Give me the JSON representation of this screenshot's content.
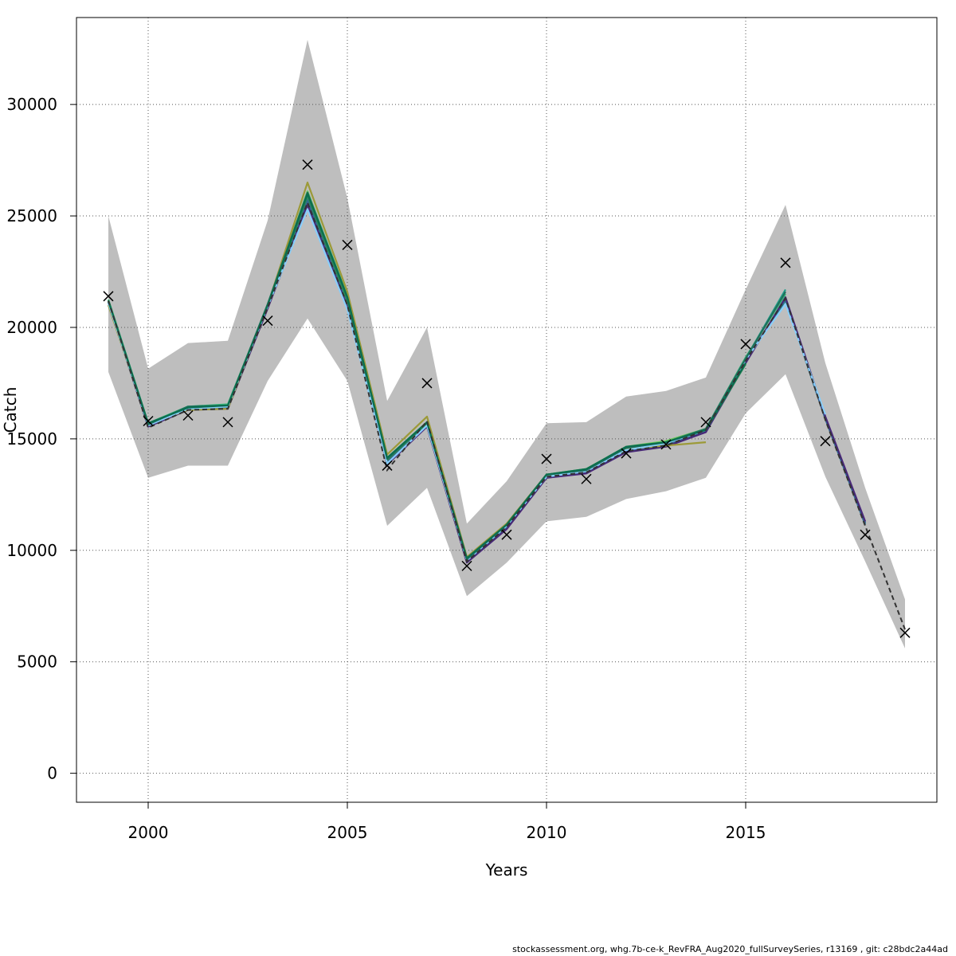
{
  "chart_data": {
    "type": "line",
    "title": "",
    "xlabel": "Years",
    "ylabel": "Catch",
    "xlim": [
      1998.2,
      2019.8
    ],
    "ylim": [
      -1300,
      33900
    ],
    "x_ticks": [
      2000,
      2005,
      2010,
      2015
    ],
    "y_ticks": [
      0,
      5000,
      10000,
      15000,
      20000,
      25000,
      30000
    ],
    "grid": true,
    "legend": "none",
    "colors": {
      "band": "#bebebe",
      "observed": "#000000",
      "fit": "#333333",
      "series": [
        "#1f9e89",
        "#35b779",
        "#26828e",
        "#3e4a89",
        "#31688e",
        "#482878",
        "#6ece58",
        "#9c9a38",
        "#2e8b57",
        "#87cefa",
        "#1e6f5c",
        "#0b6e4f"
      ]
    },
    "observed": {
      "x": [
        1999,
        2000,
        2001,
        2002,
        2003,
        2004,
        2005,
        2006,
        2007,
        2008,
        2009,
        2010,
        2011,
        2012,
        2013,
        2014,
        2015,
        2016,
        2017,
        2018,
        2019
      ],
      "y": [
        21400,
        15800,
        16050,
        15750,
        20300,
        27300,
        23700,
        13800,
        17500,
        9300,
        10700,
        14100,
        13200,
        14350,
        14750,
        15750,
        19250,
        22900,
        14900,
        10700,
        6300
      ]
    },
    "band": {
      "x": [
        1999,
        2000,
        2001,
        2002,
        2003,
        2004,
        2005,
        2006,
        2007,
        2008,
        2009,
        2010,
        2011,
        2012,
        2013,
        2014,
        2015,
        2016,
        2017,
        2018,
        2019
      ],
      "lower": [
        18000,
        13250,
        13800,
        13800,
        17600,
        20400,
        17600,
        11100,
        12800,
        7950,
        9450,
        11300,
        11500,
        12300,
        12650,
        13250,
        16150,
        17900,
        13300,
        9500,
        5600
      ],
      "upper": [
        25000,
        18150,
        19300,
        19400,
        24800,
        32900,
        25800,
        16700,
        20000,
        11200,
        13100,
        15700,
        15750,
        16900,
        17150,
        17750,
        21700,
        25500,
        18400,
        12800,
        7800
      ]
    },
    "fit": {
      "x": [
        1999,
        2000,
        2001,
        2002,
        2003,
        2004,
        2005,
        2006,
        2007,
        2008,
        2009,
        2010,
        2011,
        2012,
        2013,
        2014,
        2015,
        2016,
        2017,
        2018,
        2019
      ],
      "y": [
        21200,
        15500,
        16300,
        16350,
        20900,
        25600,
        21000,
        13600,
        15800,
        9500,
        11050,
        13300,
        13500,
        14450,
        14700,
        15400,
        18500,
        21300,
        15850,
        11100,
        6450
      ]
    },
    "series": [
      {
        "x": [
          1999,
          2000,
          2001,
          2002,
          2003,
          2004,
          2005,
          2006,
          2007,
          2008,
          2009,
          2010,
          2011,
          2012,
          2013,
          2014,
          2015,
          2016
        ],
        "y": [
          21200,
          15650,
          16400,
          16500,
          21000,
          26000,
          21300,
          14100,
          15700,
          9600,
          11100,
          13350,
          13600,
          14550,
          14850,
          15400,
          18600,
          21700
        ]
      },
      {
        "x": [
          1999,
          2000,
          2001,
          2002,
          2003,
          2004,
          2005,
          2006,
          2007,
          2008,
          2009,
          2010,
          2011,
          2012,
          2013,
          2014,
          2015,
          2016
        ],
        "y": [
          21250,
          15700,
          16450,
          16550,
          21000,
          26100,
          21400,
          14150,
          15750,
          9650,
          11150,
          13400,
          13650,
          14600,
          14900,
          15450,
          18650,
          21500
        ]
      },
      {
        "x": [
          1999,
          2000,
          2001,
          2002,
          2003,
          2004,
          2005,
          2006,
          2007,
          2008,
          2009,
          2010,
          2011,
          2012,
          2013,
          2014,
          2015,
          2016,
          2017,
          2018
        ],
        "y": [
          21150,
          15600,
          16350,
          16450,
          20950,
          25800,
          21100,
          14000,
          15650,
          9550,
          11050,
          13300,
          13550,
          14500,
          14800,
          15350,
          18550,
          21200,
          15900,
          11200
        ]
      },
      {
        "x": [
          1999,
          2000,
          2001,
          2002,
          2003,
          2004,
          2005,
          2006,
          2007,
          2008,
          2009,
          2010,
          2011,
          2012,
          2013,
          2014,
          2015,
          2016,
          2017,
          2018
        ],
        "y": [
          21100,
          15550,
          16300,
          16400,
          20900,
          25500,
          20950,
          13950,
          15600,
          9500,
          11000,
          13250,
          13500,
          14450,
          14700,
          15300,
          18450,
          21300,
          15950,
          11250
        ]
      },
      {
        "x": [
          1999,
          2000,
          2001,
          2002,
          2003,
          2004,
          2005,
          2006,
          2007,
          2008,
          2009,
          2010,
          2011,
          2012,
          2013,
          2014,
          2015,
          2016,
          2017,
          2018
        ],
        "y": [
          21150,
          15600,
          16350,
          16400,
          20900,
          25700,
          21050,
          13900,
          15650,
          9550,
          11050,
          13300,
          13550,
          14500,
          14750,
          15350,
          18500,
          21250,
          15900,
          11150
        ]
      },
      {
        "x": [
          1999,
          2000,
          2001,
          2002,
          2003,
          2004,
          2005,
          2006,
          2007,
          2008,
          2009,
          2010,
          2011,
          2012,
          2013,
          2014,
          2015,
          2016,
          2017,
          2018
        ],
        "y": [
          21100,
          15550,
          16300,
          16350,
          20850,
          25500,
          20900,
          13850,
          15550,
          9450,
          10950,
          13250,
          13450,
          14400,
          14650,
          15300,
          18400,
          21350,
          16000,
          11300
        ]
      },
      {
        "x": [
          1999,
          2000,
          2001,
          2002,
          2003,
          2004,
          2005,
          2006,
          2007,
          2008,
          2009,
          2010,
          2011,
          2012,
          2013,
          2014,
          2015
        ],
        "y": [
          21200,
          15650,
          16400,
          16500,
          21000,
          26100,
          21300,
          14150,
          15750,
          9650,
          11150,
          13400,
          13650,
          14650,
          14900,
          15450,
          18400
        ]
      },
      {
        "x": [
          1999,
          2000,
          2001,
          2002,
          2003,
          2004,
          2005,
          2006,
          2007,
          2008,
          2009,
          2010,
          2011,
          2012,
          2013,
          2014
        ],
        "y": [
          21000,
          15650,
          16300,
          16350,
          21000,
          26500,
          21600,
          14300,
          16000,
          9700,
          11200,
          13400,
          13600,
          14550,
          14700,
          14850
        ]
      },
      {
        "x": [
          1999,
          2000,
          2001,
          2002,
          2003,
          2004,
          2005,
          2006,
          2007,
          2008,
          2009,
          2010,
          2011,
          2012,
          2013,
          2014,
          2015
        ],
        "y": [
          21150,
          15650,
          16350,
          16450,
          20950,
          25900,
          21200,
          14050,
          15700,
          9600,
          11100,
          13350,
          13600,
          14600,
          14850,
          15400,
          18350
        ]
      },
      {
        "x": [
          1999,
          2000,
          2001,
          2002,
          2003,
          2004,
          2005,
          2006,
          2007,
          2008,
          2009,
          2010,
          2011,
          2012,
          2013,
          2014,
          2015,
          2016,
          2017
        ],
        "y": [
          21100,
          15600,
          16350,
          16450,
          20950,
          25300,
          20800,
          13900,
          15600,
          9550,
          11100,
          13300,
          13550,
          14500,
          14800,
          15400,
          18550,
          21050,
          16100
        ]
      },
      {
        "x": [
          1999,
          2000,
          2001,
          2002,
          2003,
          2004,
          2005,
          2006,
          2007,
          2008,
          2009,
          2010,
          2011,
          2012,
          2013,
          2014,
          2015,
          2016
        ],
        "y": [
          21200,
          15650,
          16450,
          16500,
          21050,
          26050,
          21350,
          14100,
          15750,
          9600,
          11150,
          13400,
          13600,
          14600,
          14850,
          15450,
          18600,
          21600
        ]
      },
      {
        "x": [
          1999,
          2000,
          2001,
          2002,
          2003,
          2004,
          2005,
          2006,
          2007,
          2008,
          2009,
          2010,
          2011,
          2012,
          2013,
          2014,
          2015
        ],
        "y": [
          21200,
          15700,
          16400,
          16500,
          21000,
          26000,
          21350,
          14150,
          15750,
          9650,
          11150,
          13400,
          13650,
          14650,
          14850,
          15400,
          18400
        ]
      }
    ]
  },
  "footer": "stockassessment.org, whg.7b-ce-k_RevFRA_Aug2020_fullSurveySeries, r13169 , git: c28bdc2a44ad"
}
